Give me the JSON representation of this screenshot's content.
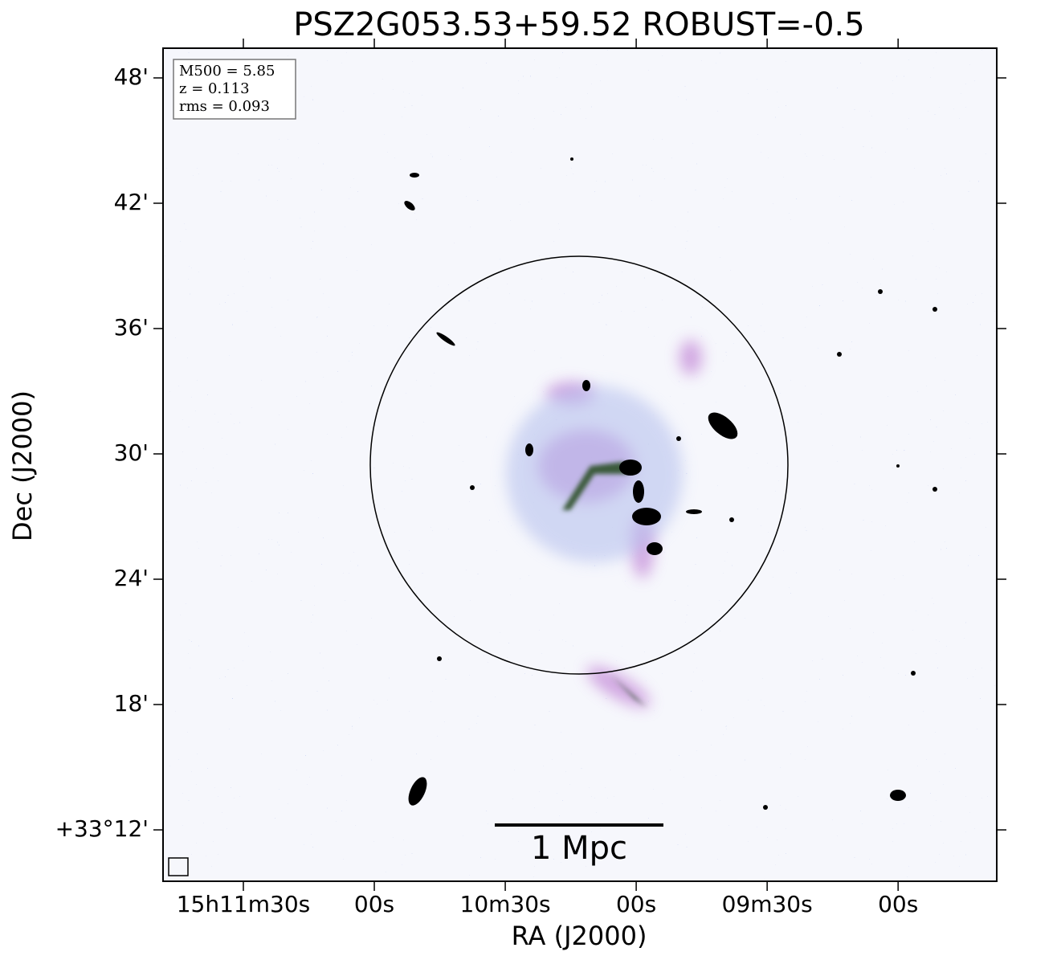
{
  "chart_data": {
    "type": "image",
    "title": "PSZ2G053.53+59.52 ROBUST=-0.5",
    "x_label": "RA (J2000)",
    "y_label": "Dec (J2000)",
    "annotations": [
      "M500 = 5.85",
      "z = 0.113",
      "rms = 0.093"
    ],
    "scale_bar_label": "1 Mpc",
    "xlim": [
      708.4,
      517.4
    ],
    "xticks": [
      {
        "value": 690,
        "label": "15h11m30s"
      },
      {
        "value": 660,
        "label": "00s"
      },
      {
        "value": 630,
        "label": "10m30s"
      },
      {
        "value": 600,
        "label": "00s"
      },
      {
        "value": 570,
        "label": "09m30s"
      },
      {
        "value": 540,
        "label": "00s"
      }
    ],
    "ylim": [
      33.159,
      33.8237
    ],
    "yticks": [
      {
        "value": 33.2,
        "label": "+33°12'"
      },
      {
        "value": 33.3,
        "label": "18'"
      },
      {
        "value": 33.4,
        "label": "24'"
      },
      {
        "value": 33.5,
        "label": "30'"
      },
      {
        "value": 33.6,
        "label": "36'"
      },
      {
        "value": 33.7,
        "label": "42'"
      },
      {
        "value": 33.8,
        "label": "48'"
      }
    ]
  }
}
